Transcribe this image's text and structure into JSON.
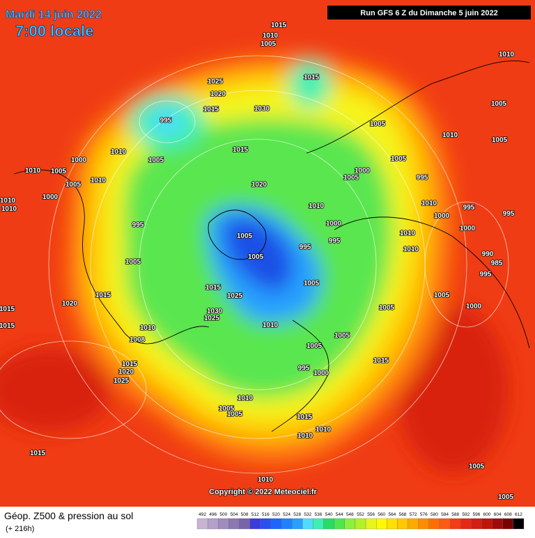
{
  "header": {
    "date": "Mardi 14 juin 2022",
    "time": "7:00 locale",
    "run": "Run GFS 6 Z du Dimanche 5 juin 2022"
  },
  "copyright": "Copyright © 2022 Meteociel.fr",
  "footer": {
    "title": "Géop. Z500 & pression au sol",
    "lead": "(+ 216h)"
  },
  "pressure_labels": [
    "1015",
    "1010",
    "1005",
    "1010",
    "1015",
    "1025",
    "1020",
    "1015",
    "1030",
    "995",
    "1005",
    "1005",
    "1010",
    "1005",
    "1010",
    "1005",
    "1015",
    "1005",
    "1000",
    "1010",
    "1005",
    "1000",
    "1005",
    "1005",
    "995",
    "1020",
    "1010",
    "1000",
    "1010",
    "1010",
    "1010",
    "1010",
    "995",
    "1000",
    "995",
    "995",
    "1000",
    "1000",
    "1005",
    "995",
    "995",
    "1010",
    "1010",
    "1005",
    "990",
    "985",
    "1005",
    "995",
    "1005",
    "1015",
    "1015",
    "1025",
    "1005",
    "1020",
    "1005",
    "1000",
    "1030",
    "1025",
    "1015",
    "1015",
    "1010",
    "1010",
    "1008",
    "1005",
    "1005",
    "1015",
    "1015",
    "1020",
    "1025",
    "995",
    "1000",
    "1010",
    "1005",
    "1005",
    "1015",
    "1010",
    "1010",
    "1015",
    "1005",
    "1010",
    "1005"
  ],
  "legend": {
    "values": [
      492,
      496,
      500,
      504,
      508,
      512,
      516,
      520,
      524,
      528,
      532,
      536,
      540,
      544,
      548,
      552,
      556,
      560,
      564,
      568,
      572,
      576,
      580,
      584,
      588,
      592,
      596,
      600,
      604,
      608,
      612
    ],
    "colors": [
      "#c8b4d2",
      "#b4a0c8",
      "#a08cbe",
      "#8c78b4",
      "#7864aa",
      "#3c3cdc",
      "#2850f0",
      "#1e64ff",
      "#1e82ff",
      "#28a0ff",
      "#50dcff",
      "#3cf0b4",
      "#28dc64",
      "#50e650",
      "#8cf03c",
      "#b4f028",
      "#e6f51e",
      "#fffa00",
      "#ffe100",
      "#ffc800",
      "#ffaa00",
      "#ff8c00",
      "#ff6e00",
      "#ff5a14",
      "#f53c14",
      "#e62814",
      "#d21e14",
      "#be140a",
      "#a00a0a",
      "#780000",
      "#000000"
    ]
  }
}
